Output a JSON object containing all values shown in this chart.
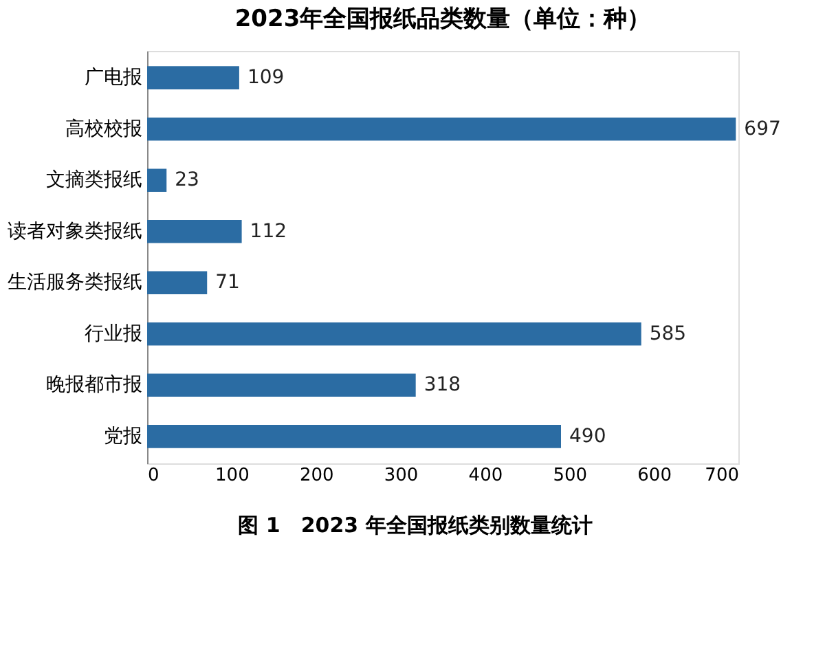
{
  "chart_data": {
    "type": "bar",
    "orientation": "horizontal",
    "title": "2023年全国报纸品类数量（单位：种）",
    "categories": [
      "广电报",
      "高校校报",
      "文摘类报纸",
      "读者对象类报纸",
      "生活服务类报纸",
      "行业报",
      "晚报都市报",
      "党报"
    ],
    "values": [
      109,
      697,
      23,
      112,
      71,
      585,
      318,
      490
    ],
    "color": "#2b6ca3",
    "xlim": [
      0,
      700
    ],
    "xticks": [
      0,
      100,
      200,
      300,
      400,
      500,
      600,
      700
    ],
    "data_labels": true,
    "grid": false,
    "annotations": [
      "图 1　2023 年全国报纸类别数量统计"
    ]
  }
}
